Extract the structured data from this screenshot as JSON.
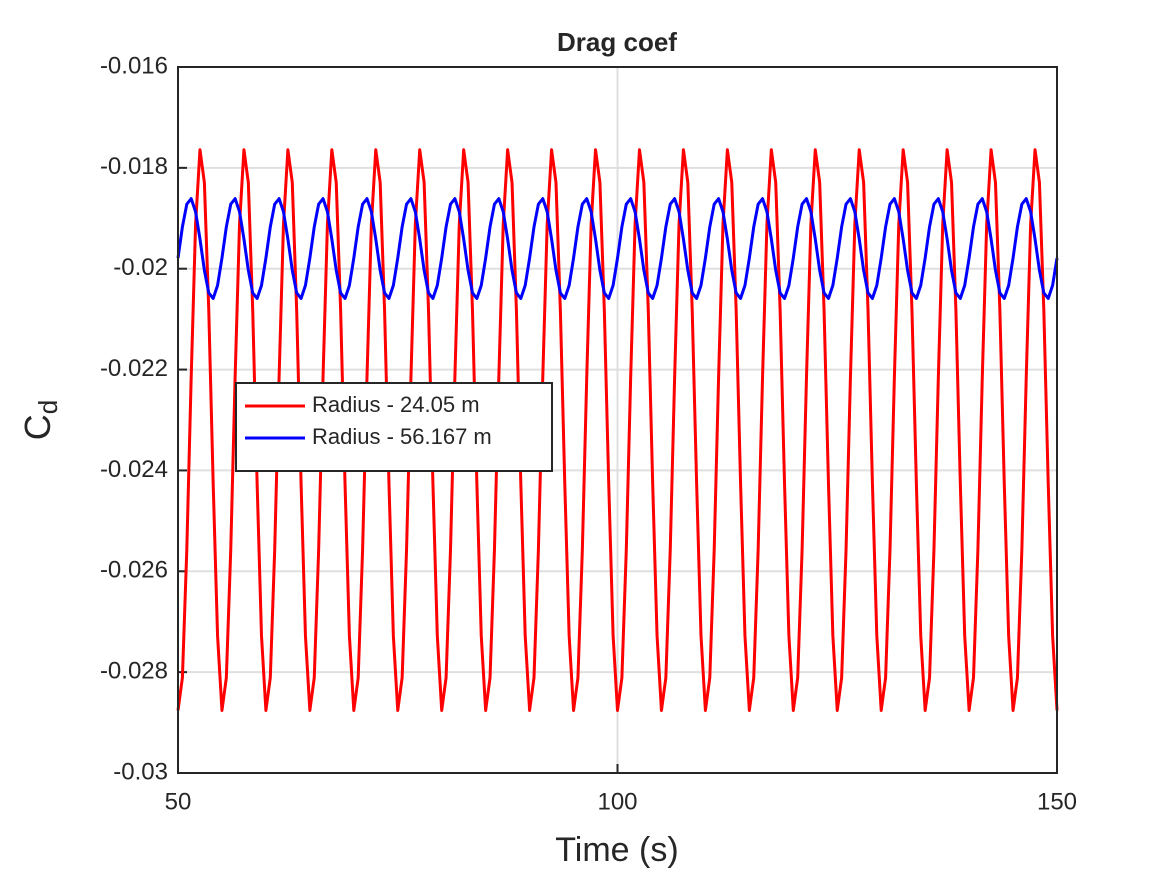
{
  "chart_data": {
    "type": "line",
    "title": "Drag coef",
    "xlabel": "Time (s)",
    "ylabel": "C",
    "ylabel_subscript": "d",
    "xlim": [
      50,
      150
    ],
    "xticks": [
      50,
      100,
      150
    ],
    "ylim": [
      -0.03,
      -0.016
    ],
    "yticks": [
      -0.03,
      -0.028,
      -0.026,
      -0.024,
      -0.022,
      -0.02,
      -0.018,
      -0.016
    ],
    "grid": true,
    "legend": "west",
    "x": [
      50,
      50.5,
      51,
      51.5,
      52,
      52.5,
      53,
      53.5,
      54,
      54.5,
      55,
      55.5,
      56,
      56.5,
      57,
      57.5,
      58,
      58.5,
      59,
      59.5,
      60,
      60.5,
      61,
      61.5,
      62,
      62.5,
      63,
      63.5,
      64,
      64.5,
      65,
      65.5,
      66,
      66.5,
      67,
      67.5,
      68,
      68.5,
      69,
      69.5,
      70,
      70.5,
      71,
      71.5,
      72,
      72.5,
      73,
      73.5,
      74,
      74.5,
      75,
      75.5,
      76,
      76.5,
      77,
      77.5,
      78,
      78.5,
      79,
      79.5,
      80,
      80.5,
      81,
      81.5,
      82,
      82.5,
      83,
      83.5,
      84,
      84.5,
      85,
      85.5,
      86,
      86.5,
      87,
      87.5,
      88,
      88.5,
      89,
      89.5,
      90,
      90.5,
      91,
      91.5,
      92,
      92.5,
      93,
      93.5,
      94,
      94.5,
      95,
      95.5,
      96,
      96.5,
      97,
      97.5,
      98,
      98.5,
      99,
      99.5,
      100,
      100.5,
      101,
      101.5,
      102,
      102.5,
      103,
      103.5,
      104,
      104.5,
      105,
      105.5,
      106,
      106.5,
      107,
      107.5,
      108,
      108.5,
      109,
      109.5,
      110,
      110.5,
      111,
      111.5,
      112,
      112.5,
      113,
      113.5,
      114,
      114.5,
      115,
      115.5,
      116,
      116.5,
      117,
      117.5,
      118,
      118.5,
      119,
      119.5,
      120,
      120.5,
      121,
      121.5,
      122,
      122.5,
      123,
      123.5,
      124,
      124.5,
      125,
      125.5,
      126,
      126.5,
      127,
      127.5,
      128,
      128.5,
      129,
      129.5,
      130,
      130.5,
      131,
      131.5,
      132,
      132.5,
      133,
      133.5,
      134,
      134.5,
      135,
      135.5,
      136,
      136.5,
      137,
      137.5,
      138,
      138.5,
      139,
      139.5,
      140,
      140.5,
      141,
      141.5,
      142,
      142.5,
      143,
      143.5,
      144,
      144.5,
      145,
      145.5,
      146,
      146.5,
      147,
      147.5,
      148,
      148.5,
      149,
      149.5,
      150
    ],
    "series": [
      {
        "name": "Radius - 24.05 m",
        "color": "#ff0000",
        "values": [
          -0.02876,
          -0.02811,
          -0.02558,
          -0.02215,
          -0.01912,
          -0.01764,
          -0.01829,
          -0.02082,
          -0.02425,
          -0.02728,
          -0.02876,
          -0.02811,
          -0.02558,
          -0.02215,
          -0.01912,
          -0.01764,
          -0.01829,
          -0.02082,
          -0.02425,
          -0.02728,
          -0.02876,
          -0.02811,
          -0.02558,
          -0.02215,
          -0.01912,
          -0.01764,
          -0.01829,
          -0.02082,
          -0.02425,
          -0.02728,
          -0.02876,
          -0.02811,
          -0.02558,
          -0.02215,
          -0.01912,
          -0.01764,
          -0.01829,
          -0.02082,
          -0.02425,
          -0.02728,
          -0.02876,
          -0.02811,
          -0.02558,
          -0.02215,
          -0.01912,
          -0.01764,
          -0.01829,
          -0.02082,
          -0.02425,
          -0.02728,
          -0.02876,
          -0.02811,
          -0.02558,
          -0.02215,
          -0.01912,
          -0.01764,
          -0.01829,
          -0.02082,
          -0.02425,
          -0.02728,
          -0.02876,
          -0.02811,
          -0.02558,
          -0.02215,
          -0.01912,
          -0.01764,
          -0.01829,
          -0.02082,
          -0.02425,
          -0.02728,
          -0.02876,
          -0.02811,
          -0.02558,
          -0.02215,
          -0.01912,
          -0.01764,
          -0.01829,
          -0.02082,
          -0.02425,
          -0.02728,
          -0.02876,
          -0.02811,
          -0.02558,
          -0.02215,
          -0.01912,
          -0.01764,
          -0.01829,
          -0.02082,
          -0.02425,
          -0.02728,
          -0.02876,
          -0.02811,
          -0.02558,
          -0.02215,
          -0.01912,
          -0.01764,
          -0.01829,
          -0.02082,
          -0.02425,
          -0.02728,
          -0.02876,
          -0.02811,
          -0.02558,
          -0.02215,
          -0.01912,
          -0.01764,
          -0.01829,
          -0.02082,
          -0.02425,
          -0.02728,
          -0.02876,
          -0.02811,
          -0.02558,
          -0.02215,
          -0.01912,
          -0.01764,
          -0.01829,
          -0.02082,
          -0.02425,
          -0.02728,
          -0.02876,
          -0.02811,
          -0.02558,
          -0.02215,
          -0.01912,
          -0.01764,
          -0.01829,
          -0.02082,
          -0.02425,
          -0.02728,
          -0.02876,
          -0.02811,
          -0.02558,
          -0.02215,
          -0.01912,
          -0.01764,
          -0.01829,
          -0.02082,
          -0.02425,
          -0.02728,
          -0.02876,
          -0.02811,
          -0.02558,
          -0.02215,
          -0.01912,
          -0.01764,
          -0.01829,
          -0.02082,
          -0.02425,
          -0.02728,
          -0.02876,
          -0.02811,
          -0.02558,
          -0.02215,
          -0.01912,
          -0.01764,
          -0.01829,
          -0.02082,
          -0.02425,
          -0.02728,
          -0.02876,
          -0.02811,
          -0.02558,
          -0.02215,
          -0.01912,
          -0.01764,
          -0.01829,
          -0.02082,
          -0.02425,
          -0.02728,
          -0.02876,
          -0.02811,
          -0.02558,
          -0.02215,
          -0.01912,
          -0.01764,
          -0.01829,
          -0.02082,
          -0.02425,
          -0.02728,
          -0.02876,
          -0.02811,
          -0.02558,
          -0.02215,
          -0.01912,
          -0.01764,
          -0.01829,
          -0.02082,
          -0.02425,
          -0.02728,
          -0.02876,
          -0.02811,
          -0.02558,
          -0.02215,
          -0.01912,
          -0.01764,
          -0.01829,
          -0.02082,
          -0.02425,
          -0.02728,
          -0.02876
        ]
      },
      {
        "name": "Radius - 56.167 m",
        "color": "#0000ff",
        "values": [
          -0.01979,
          -0.01917,
          -0.01872,
          -0.01861,
          -0.01887,
          -0.01941,
          -0.02003,
          -0.02048,
          -0.02059,
          -0.02033,
          -0.01979,
          -0.01917,
          -0.01872,
          -0.01861,
          -0.01887,
          -0.01941,
          -0.02003,
          -0.02048,
          -0.02059,
          -0.02033,
          -0.01979,
          -0.01917,
          -0.01872,
          -0.01861,
          -0.01887,
          -0.01941,
          -0.02003,
          -0.02048,
          -0.02059,
          -0.02033,
          -0.01979,
          -0.01917,
          -0.01872,
          -0.01861,
          -0.01887,
          -0.01941,
          -0.02003,
          -0.02048,
          -0.02059,
          -0.02033,
          -0.01979,
          -0.01917,
          -0.01872,
          -0.01861,
          -0.01887,
          -0.01941,
          -0.02003,
          -0.02048,
          -0.02059,
          -0.02033,
          -0.01979,
          -0.01917,
          -0.01872,
          -0.01861,
          -0.01887,
          -0.01941,
          -0.02003,
          -0.02048,
          -0.02059,
          -0.02033,
          -0.01979,
          -0.01917,
          -0.01872,
          -0.01861,
          -0.01887,
          -0.01941,
          -0.02003,
          -0.02048,
          -0.02059,
          -0.02033,
          -0.01979,
          -0.01917,
          -0.01872,
          -0.01861,
          -0.01887,
          -0.01941,
          -0.02003,
          -0.02048,
          -0.02059,
          -0.02033,
          -0.01979,
          -0.01917,
          -0.01872,
          -0.01861,
          -0.01887,
          -0.01941,
          -0.02003,
          -0.02048,
          -0.02059,
          -0.02033,
          -0.01979,
          -0.01917,
          -0.01872,
          -0.01861,
          -0.01887,
          -0.01941,
          -0.02003,
          -0.02048,
          -0.02059,
          -0.02033,
          -0.01979,
          -0.01917,
          -0.01872,
          -0.01861,
          -0.01887,
          -0.01941,
          -0.02003,
          -0.02048,
          -0.02059,
          -0.02033,
          -0.01979,
          -0.01917,
          -0.01872,
          -0.01861,
          -0.01887,
          -0.01941,
          -0.02003,
          -0.02048,
          -0.02059,
          -0.02033,
          -0.01979,
          -0.01917,
          -0.01872,
          -0.01861,
          -0.01887,
          -0.01941,
          -0.02003,
          -0.02048,
          -0.02059,
          -0.02033,
          -0.01979,
          -0.01917,
          -0.01872,
          -0.01861,
          -0.01887,
          -0.01941,
          -0.02003,
          -0.02048,
          -0.02059,
          -0.02033,
          -0.01979,
          -0.01917,
          -0.01872,
          -0.01861,
          -0.01887,
          -0.01941,
          -0.02003,
          -0.02048,
          -0.02059,
          -0.02033,
          -0.01979,
          -0.01917,
          -0.01872,
          -0.01861,
          -0.01887,
          -0.01941,
          -0.02003,
          -0.02048,
          -0.02059,
          -0.02033,
          -0.01979,
          -0.01917,
          -0.01872,
          -0.01861,
          -0.01887,
          -0.01941,
          -0.02003,
          -0.02048,
          -0.02059,
          -0.02033,
          -0.01979,
          -0.01917,
          -0.01872,
          -0.01861,
          -0.01887,
          -0.01941,
          -0.02003,
          -0.02048,
          -0.02059,
          -0.02033,
          -0.01979,
          -0.01917,
          -0.01872,
          -0.01861,
          -0.01887,
          -0.01941,
          -0.02003,
          -0.02048,
          -0.02059,
          -0.02033,
          -0.01979,
          -0.01917,
          -0.01872,
          -0.01861,
          -0.01887,
          -0.01941,
          -0.02003,
          -0.02048,
          -0.02059,
          -0.02033,
          -0.01979
        ]
      }
    ]
  }
}
